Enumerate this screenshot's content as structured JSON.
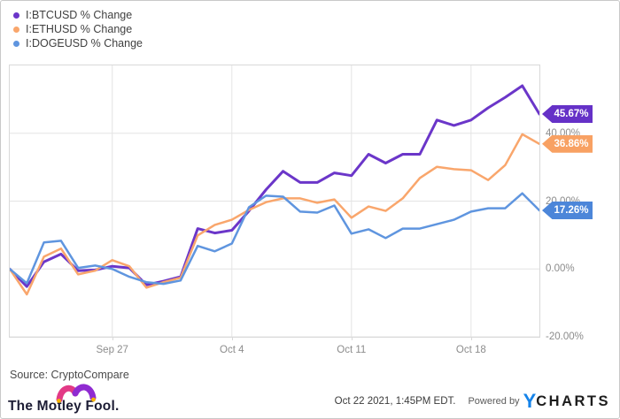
{
  "chart_data": {
    "type": "line",
    "title": "",
    "xlabel": "",
    "ylabel": "",
    "ylim": [
      -20,
      60
    ],
    "grid": true,
    "legend_position": "top-left",
    "x": [
      "Sep 21",
      "Sep 22",
      "Sep 23",
      "Sep 24",
      "Sep 25",
      "Sep 26",
      "Sep 27",
      "Sep 28",
      "Sep 29",
      "Sep 30",
      "Oct 1",
      "Oct 2",
      "Oct 3",
      "Oct 4",
      "Oct 5",
      "Oct 6",
      "Oct 7",
      "Oct 8",
      "Oct 9",
      "Oct 10",
      "Oct 11",
      "Oct 12",
      "Oct 13",
      "Oct 14",
      "Oct 15",
      "Oct 16",
      "Oct 17",
      "Oct 18",
      "Oct 19",
      "Oct 20",
      "Oct 21",
      "Oct 22"
    ],
    "series": [
      {
        "id": "btcusd",
        "name": "I:BTCUSD % Change",
        "color": "#6b36c9",
        "badge_color": "#6531c7",
        "final_label": "45.67%",
        "values": [
          0,
          -5.2,
          2.1,
          4.4,
          -0.5,
          -0.3,
          0.8,
          0.3,
          -4.7,
          -3.6,
          -2.3,
          11.9,
          10.6,
          11.4,
          17.1,
          23.4,
          28.8,
          25.5,
          25.5,
          28.3,
          27.5,
          33.8,
          31.2,
          33.8,
          33.8,
          43.9,
          42.3,
          43.9,
          47.5,
          50.6,
          54.0,
          45.67
        ]
      },
      {
        "id": "ethusd",
        "name": "I:ETHUSD % Change",
        "color": "#f9a66c",
        "badge_color": "#f8a163",
        "final_label": "36.86%",
        "values": [
          0,
          -7.5,
          3.6,
          6.0,
          -1.6,
          -0.5,
          2.6,
          0.8,
          -5.5,
          -3.9,
          -2.6,
          9.9,
          13.0,
          14.5,
          17.4,
          19.7,
          20.8,
          20.8,
          19.5,
          20.5,
          15.1,
          18.4,
          17.1,
          20.8,
          26.8,
          30.1,
          29.4,
          29.1,
          26.2,
          30.6,
          39.7,
          36.86
        ]
      },
      {
        "id": "dogeusd",
        "name": "I:DOGEUSD % Change",
        "color": "#5f95df",
        "badge_color": "#4c86d9",
        "final_label": "17.26%",
        "values": [
          0,
          -4.2,
          7.8,
          8.3,
          0.3,
          1.0,
          0.0,
          -2.3,
          -3.9,
          -4.4,
          -3.4,
          6.8,
          5.2,
          7.5,
          18.2,
          21.6,
          21.3,
          16.9,
          16.6,
          18.7,
          10.4,
          11.7,
          9.1,
          11.9,
          11.9,
          13.2,
          14.5,
          16.9,
          17.9,
          17.9,
          22.3,
          17.26
        ]
      }
    ],
    "yticks": [
      {
        "value": 40,
        "label": "40.00%"
      },
      {
        "value": 20,
        "label": "20.00%"
      },
      {
        "value": 0,
        "label": "0.00%"
      },
      {
        "value": -20,
        "label": "-20.00%"
      }
    ],
    "xticks": [
      {
        "index": 6,
        "label": "Sep 27"
      },
      {
        "index": 13,
        "label": "Oct 4"
      },
      {
        "index": 20,
        "label": "Oct 11"
      },
      {
        "index": 27,
        "label": "Oct 18"
      }
    ]
  },
  "source": {
    "label": "Source: CryptoCompare"
  },
  "footer": {
    "brand": "The Motley Fool.",
    "timestamp": "Oct 22 2021, 1:45PM EDT.",
    "powered_by": "Powered by",
    "charts_logo_y": "Y",
    "charts_logo_rest": "CHARTS"
  },
  "colors": {
    "grid": "#e4e4e4",
    "plot_border": "#d9d9d9",
    "tick_text": "#8c8c8c",
    "hat_left": "#e23a86",
    "hat_right": "#8f2bd1",
    "hat_bell": "#f5b301",
    "ycharts_blue": "#1583e9"
  }
}
